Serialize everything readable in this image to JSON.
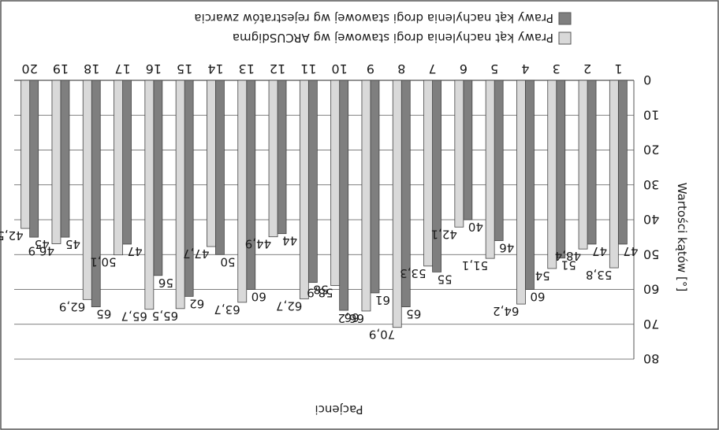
{
  "chart_data": {
    "type": "bar",
    "title": "Pacjenci",
    "xlabel": "",
    "ylabel": "Wartości kątów [°]",
    "ylim": [
      0,
      80
    ],
    "yticks": [
      0,
      10,
      20,
      30,
      40,
      50,
      60,
      70,
      80
    ],
    "grid": true,
    "legend_position": "bottom",
    "orientation": "rotated 180 degrees",
    "categories": [
      "1",
      "2",
      "3",
      "4",
      "5",
      "6",
      "7",
      "8",
      "9",
      "10",
      "11",
      "12",
      "13",
      "14",
      "15",
      "16",
      "17",
      "18",
      "19",
      "20"
    ],
    "series": [
      {
        "name": "Prawy kąt nachylenia drogi stawowej wg rejestratów zwarcia",
        "color": "#7f7f7f",
        "values": [
          47,
          47,
          51,
          60,
          46,
          40,
          55,
          65,
          61,
          66,
          58,
          44,
          60,
          50,
          62,
          56,
          47,
          65,
          45,
          45
        ],
        "labels": [
          "47",
          "47",
          "51",
          "60",
          "46",
          "40",
          "55",
          "65",
          "61",
          "66",
          "58",
          "44",
          "60",
          "50",
          "62",
          "56",
          "47",
          "65",
          "45",
          "45"
        ]
      },
      {
        "name": "Prawy kąt nachylenia drogi stawowej wg ARCUSdigma",
        "color": "#d9d9d9",
        "values": [
          53.8,
          48.4,
          54,
          64.2,
          51.1,
          42.1,
          53.3,
          70.9,
          66.2,
          58.9,
          62.7,
          44.9,
          63.7,
          47.7,
          65.5,
          65.7,
          50.1,
          62.9,
          46.9,
          42.5
        ],
        "labels": [
          "53,8",
          "48,4",
          "54",
          "64,2",
          "51,1",
          "42,1",
          "53,3",
          "70,9",
          "66,2",
          "58,9",
          "62,7",
          "44,9",
          "63,7",
          "47,7",
          "65,5",
          "65,7",
          "50,1",
          "62,9",
          "46,9",
          "42,5"
        ]
      }
    ]
  }
}
